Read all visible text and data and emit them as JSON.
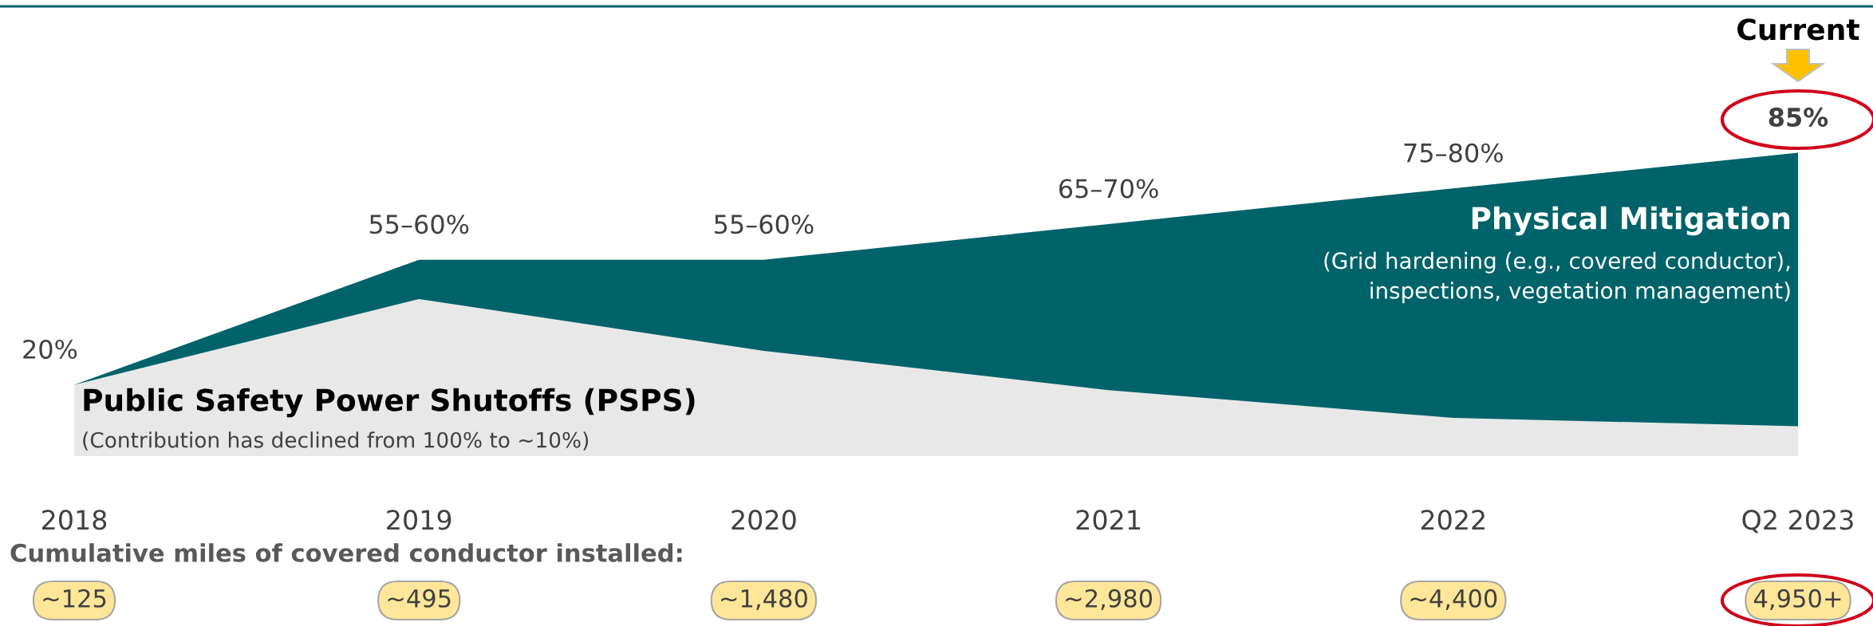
{
  "chart_data": {
    "type": "area",
    "ylim": [
      0,
      126
    ],
    "tick_labels": "x",
    "categories": [
      "2018",
      "2019",
      "2020",
      "2021",
      "2022",
      "Q2 2023"
    ],
    "series": [
      {
        "name": "Physical Mitigation",
        "color": "#00636a",
        "values": [
          20,
          55,
          55,
          65,
          75,
          85
        ],
        "value_labels": [
          "20%",
          "55–60%",
          "55–60%",
          "65–70%",
          "75–80%",
          "85%"
        ]
      },
      {
        "name": "Public Safety Power Shutoffs (PSPS)",
        "color": "#e8e8e8",
        "values": [
          20,
          44,
          29.5,
          18.5,
          10.7,
          8.4
        ]
      }
    ],
    "annotations": [
      "Cumulative miles of covered conductor installed:",
      "~125",
      "~495",
      "~1,480",
      "~2,980",
      "~4,400",
      "4,950+",
      "(Grid hardening (e.g., covered conductor),\ninspections, vegetation management)",
      "(Contribution has declined from 100% to ~10%)",
      "Current"
    ]
  }
}
